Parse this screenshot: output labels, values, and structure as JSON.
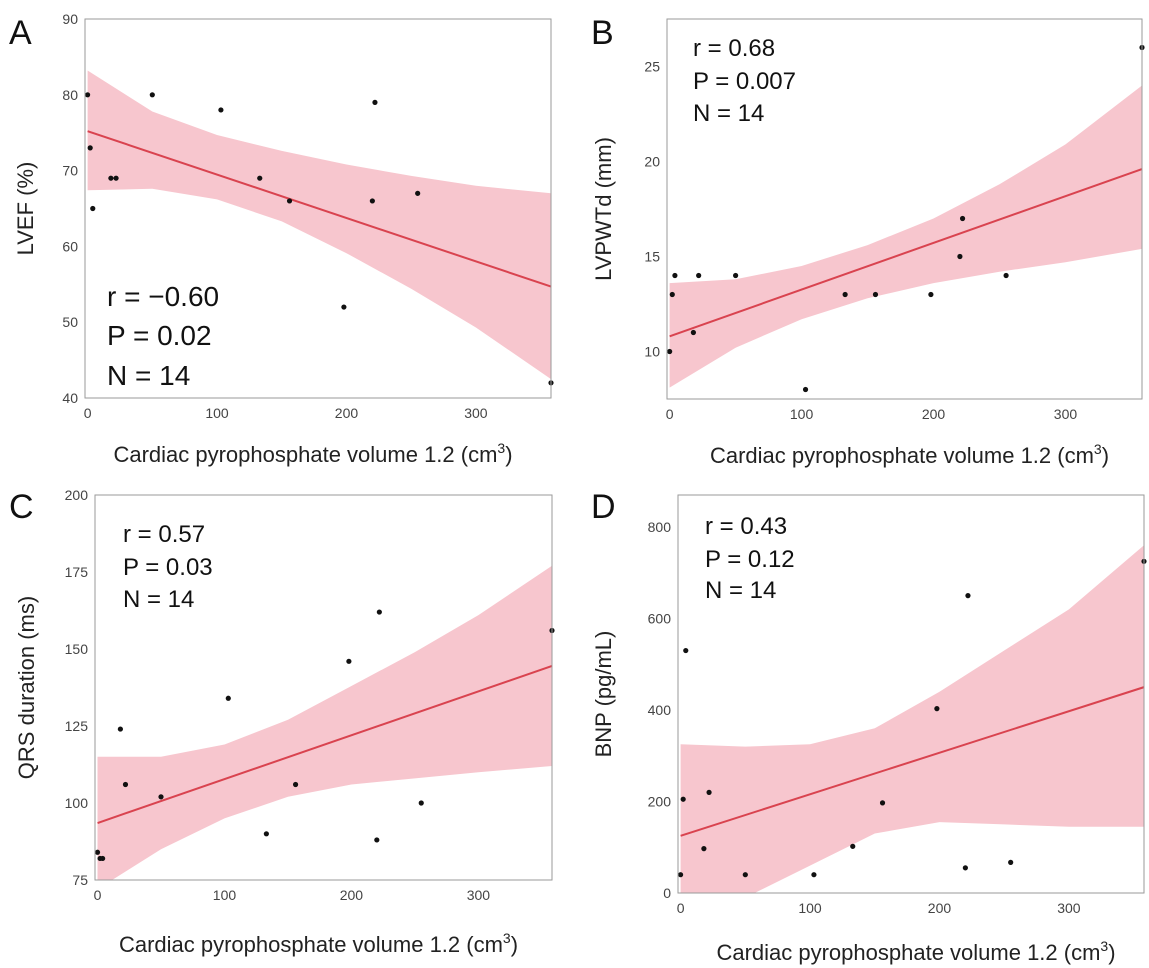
{
  "figure": {
    "colors": {
      "band": "#f7c6ce",
      "line": "#d9434f",
      "point": "#111111",
      "frame": "#9a9a9a"
    }
  },
  "chart_data": [
    {
      "panel": "A",
      "type": "scatter",
      "xlabel": "Cardiac pyrophosphate volume 1.2 (cm",
      "xlabel_sup": "3",
      "xlabel_close": ")",
      "ylabel": "LVEF (%)",
      "xlim": [
        -2,
        358
      ],
      "ylim": [
        40,
        90
      ],
      "xticks": [
        0,
        100,
        200,
        300
      ],
      "yticks": [
        40,
        50,
        60,
        70,
        80,
        90
      ],
      "stats": [
        "r = −0.60",
        "P = 0.02",
        "N = 14"
      ],
      "stats_pos": "bottom-left",
      "points": [
        [
          0,
          80
        ],
        [
          2,
          73
        ],
        [
          4,
          65
        ],
        [
          18,
          69
        ],
        [
          22,
          69
        ],
        [
          50,
          80
        ],
        [
          103,
          78
        ],
        [
          133,
          69
        ],
        [
          156,
          66
        ],
        [
          198,
          52
        ],
        [
          220,
          66
        ],
        [
          222,
          79
        ],
        [
          255,
          67
        ],
        [
          358,
          42
        ]
      ],
      "fit": {
        "x": [
          0,
          358
        ],
        "y": [
          75.2,
          54.7
        ]
      },
      "ci_upper": {
        "x": [
          0,
          50,
          100,
          150,
          200,
          250,
          300,
          358
        ],
        "y": [
          83.2,
          77.8,
          74.7,
          72.6,
          70.8,
          69.3,
          68.0,
          67.0
        ]
      },
      "ci_lower": {
        "x": [
          0,
          50,
          100,
          150,
          200,
          250,
          300,
          358
        ],
        "y": [
          67.4,
          67.6,
          66.2,
          63.3,
          59.1,
          54.4,
          49.3,
          42.5
        ]
      }
    },
    {
      "panel": "B",
      "type": "scatter",
      "xlabel": "Cardiac pyrophosphate volume 1.2 (cm",
      "xlabel_sup": "3",
      "xlabel_close": ")",
      "ylabel": "LVPWTd (mm)",
      "xlim": [
        -2,
        358
      ],
      "ylim": [
        7.5,
        27.5
      ],
      "xticks": [
        0,
        100,
        200,
        300
      ],
      "yticks": [
        10,
        15,
        20,
        25
      ],
      "stats": [
        "r = 0.68",
        "P = 0.007",
        "N = 14"
      ],
      "stats_pos": "top-left",
      "points": [
        [
          0,
          10
        ],
        [
          2,
          13
        ],
        [
          4,
          14
        ],
        [
          18,
          11
        ],
        [
          22,
          14
        ],
        [
          50,
          14
        ],
        [
          103,
          8
        ],
        [
          133,
          13
        ],
        [
          156,
          13
        ],
        [
          198,
          13
        ],
        [
          220,
          15
        ],
        [
          222,
          17
        ],
        [
          255,
          14
        ],
        [
          358,
          26
        ]
      ],
      "fit": {
        "x": [
          0,
          358
        ],
        "y": [
          10.8,
          19.6
        ]
      },
      "ci_upper": {
        "x": [
          0,
          50,
          100,
          150,
          200,
          250,
          300,
          358
        ],
        "y": [
          13.6,
          13.8,
          14.5,
          15.6,
          17.0,
          18.8,
          20.9,
          24.0
        ]
      },
      "ci_lower": {
        "x": [
          0,
          50,
          100,
          150,
          200,
          250,
          300,
          358
        ],
        "y": [
          8.1,
          10.2,
          11.7,
          12.8,
          13.6,
          14.2,
          14.7,
          15.4
        ]
      }
    },
    {
      "panel": "C",
      "type": "scatter",
      "xlabel": "Cardiac pyrophosphate volume 1.2 (cm",
      "xlabel_sup": "3",
      "xlabel_close": ")",
      "ylabel": "QRS duration (ms)",
      "xlim": [
        -2,
        358
      ],
      "ylim": [
        75,
        200
      ],
      "xticks": [
        0,
        100,
        200,
        300
      ],
      "yticks": [
        75,
        100,
        125,
        150,
        175,
        200
      ],
      "stats": [
        "r = 0.57",
        "P = 0.03",
        "N = 14"
      ],
      "stats_pos": "top-left",
      "points": [
        [
          0,
          84
        ],
        [
          2,
          82
        ],
        [
          4,
          82
        ],
        [
          18,
          124
        ],
        [
          22,
          106
        ],
        [
          50,
          102
        ],
        [
          103,
          134
        ],
        [
          133,
          90
        ],
        [
          156,
          106
        ],
        [
          198,
          146
        ],
        [
          220,
          88
        ],
        [
          222,
          162
        ],
        [
          255,
          100
        ],
        [
          358,
          156
        ]
      ],
      "fit": {
        "x": [
          0,
          358
        ],
        "y": [
          93.5,
          144.5
        ]
      },
      "ci_upper": {
        "x": [
          0,
          50,
          100,
          150,
          200,
          250,
          300,
          358
        ],
        "y": [
          115.0,
          115.0,
          119.0,
          127.0,
          138.0,
          149.0,
          161.0,
          177.0
        ]
      },
      "ci_lower": {
        "x": [
          0,
          50,
          100,
          150,
          200,
          250,
          300,
          358
        ],
        "y": [
          72.0,
          85.0,
          95.0,
          102.0,
          106.0,
          108.0,
          110.0,
          112.0
        ]
      }
    },
    {
      "panel": "D",
      "type": "scatter",
      "xlabel": "Cardiac pyrophosphate volume 1.2 (cm",
      "xlabel_sup": "3",
      "xlabel_close": ")",
      "ylabel": "BNP (pg/mL)",
      "xlim": [
        -2,
        358
      ],
      "ylim": [
        0,
        870
      ],
      "xticks": [
        0,
        100,
        200,
        300
      ],
      "yticks": [
        0,
        200,
        400,
        600,
        800
      ],
      "stats": [
        "r = 0.43",
        "P = 0.12",
        "N = 14"
      ],
      "stats_pos": "top-left",
      "points": [
        [
          0,
          40
        ],
        [
          2,
          205
        ],
        [
          4,
          530
        ],
        [
          18,
          97
        ],
        [
          22,
          220
        ],
        [
          50,
          40
        ],
        [
          103,
          40
        ],
        [
          133,
          102
        ],
        [
          156,
          197
        ],
        [
          198,
          403
        ],
        [
          220,
          55
        ],
        [
          222,
          650
        ],
        [
          255,
          67
        ],
        [
          358,
          725
        ]
      ],
      "fit": {
        "x": [
          0,
          358
        ],
        "y": [
          125,
          450
        ]
      },
      "ci_upper": {
        "x": [
          0,
          50,
          100,
          150,
          200,
          250,
          300,
          358
        ],
        "y": [
          325,
          320,
          325,
          360,
          440,
          530,
          620,
          760
        ]
      },
      "ci_lower": {
        "x": [
          0,
          50,
          100,
          150,
          200,
          250,
          300,
          358
        ],
        "y": [
          -75,
          -10,
          60,
          130,
          155,
          150,
          145,
          145
        ]
      }
    }
  ]
}
